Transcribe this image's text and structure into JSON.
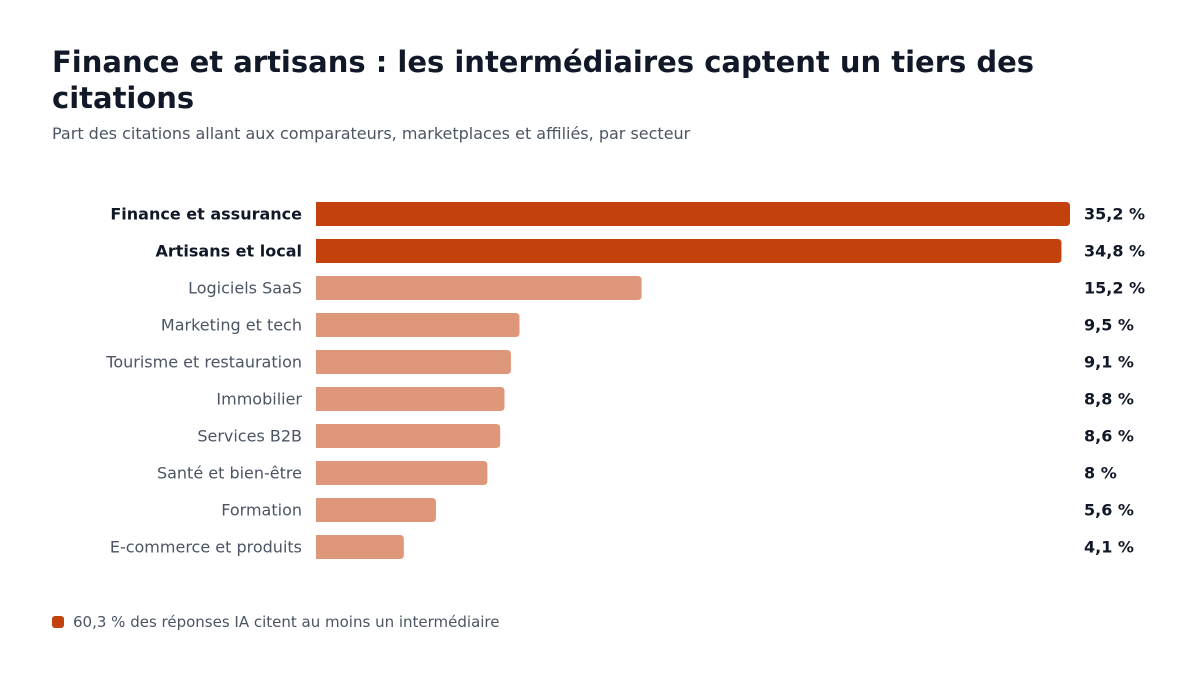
{
  "header": {
    "title": "Finance et artisans : les intermédiaires captent un tiers des citations",
    "subtitle": "Part des citations allant aux comparateurs, marketplaces et affiliés, par secteur"
  },
  "colors": {
    "highlight": "#c2410c",
    "muted": "#df977b",
    "text_dark": "#111827",
    "text_muted": "#4b5563"
  },
  "chart_data": {
    "type": "bar",
    "orientation": "horizontal",
    "title": "Finance et artisans : les intermédiaires captent un tiers des citations",
    "subtitle": "Part des citations allant aux comparateurs, marketplaces et affiliés, par secteur",
    "xlim": [
      0,
      35.2
    ],
    "grid": false,
    "categories": [
      "Finance et assurance",
      "Artisans et local",
      "Logiciels SaaS",
      "Marketing et tech",
      "Tourisme et restauration",
      "Immobilier",
      "Services B2B",
      "Santé et bien-être",
      "Formation",
      "E-commerce et produits"
    ],
    "values": [
      35.2,
      34.8,
      15.2,
      9.5,
      9.1,
      8.8,
      8.6,
      8.0,
      5.6,
      4.1
    ],
    "value_labels": [
      "35,2 %",
      "34,8 %",
      "15,2 %",
      "9,5 %",
      "9,1 %",
      "8,8 %",
      "8,6 %",
      "8 %",
      "5,6 %",
      "4,1 %"
    ],
    "highlighted": [
      true,
      true,
      false,
      false,
      false,
      false,
      false,
      false,
      false,
      false
    ]
  },
  "note": {
    "text": "60,3 % des réponses IA citent au moins un intermédiaire"
  }
}
